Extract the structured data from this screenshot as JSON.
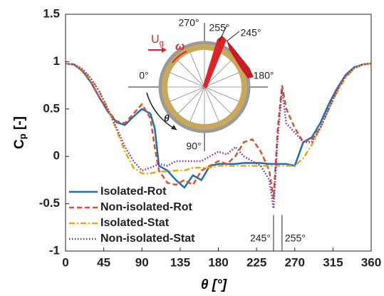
{
  "chart_data": {
    "type": "line",
    "xlabel": "θ [°]",
    "ylabel": {
      "main": "C",
      "sub": "p",
      "unit": " [-]"
    },
    "x": [
      0,
      10,
      20,
      30,
      40,
      50,
      60,
      70,
      80,
      90,
      100,
      105,
      110,
      120,
      130,
      140,
      150,
      160,
      170,
      180,
      190,
      200,
      210,
      220,
      230,
      240,
      245,
      250,
      255,
      260,
      270,
      280,
      290,
      300,
      310,
      320,
      330,
      340,
      350,
      360
    ],
    "series": [
      {
        "name": "Isolated-Rot",
        "color": "#1f6fb4",
        "dash": "solid",
        "values": [
          0.98,
          0.97,
          0.9,
          0.78,
          0.62,
          0.47,
          0.36,
          0.33,
          0.42,
          0.5,
          0.45,
          0.3,
          -0.1,
          -0.15,
          -0.25,
          -0.33,
          -0.2,
          -0.25,
          -0.1,
          -0.08,
          -0.08,
          -0.08,
          -0.07,
          -0.07,
          -0.07,
          -0.08,
          -0.08,
          -0.08,
          -0.08,
          -0.08,
          -0.1,
          0.15,
          0.2,
          0.35,
          0.55,
          0.72,
          0.86,
          0.94,
          0.97,
          0.98
        ]
      },
      {
        "name": "Non-isolated-Rot",
        "color": "#d9532a",
        "dash": "dashed",
        "values": [
          0.98,
          0.97,
          0.9,
          0.78,
          0.62,
          0.48,
          0.37,
          0.35,
          0.45,
          0.55,
          0.4,
          0.1,
          -0.15,
          -0.28,
          -0.3,
          -0.25,
          -0.3,
          -0.15,
          -0.1,
          -0.05,
          -0.08,
          0.0,
          0.15,
          0.18,
          0.05,
          -0.15,
          -0.45,
          0.3,
          0.75,
          0.5,
          0.3,
          0.15,
          0.18,
          0.3,
          0.5,
          0.7,
          0.85,
          0.93,
          0.97,
          0.98
        ]
      },
      {
        "name": "Isolated-Stat",
        "color": "#e8a81c",
        "dash": "dashdot",
        "values": [
          0.98,
          0.97,
          0.92,
          0.82,
          0.68,
          0.5,
          0.28,
          0.05,
          -0.12,
          -0.18,
          -0.18,
          -0.17,
          -0.16,
          -0.16,
          -0.15,
          -0.15,
          -0.12,
          -0.12,
          -0.12,
          -0.1,
          -0.1,
          -0.1,
          -0.1,
          -0.1,
          -0.1,
          -0.1,
          -0.1,
          -0.1,
          -0.1,
          -0.1,
          -0.1,
          -0.02,
          0.12,
          0.3,
          0.5,
          0.68,
          0.83,
          0.93,
          0.97,
          0.98
        ]
      },
      {
        "name": "Non-isolated-Stat",
        "color": "#7b2e9e",
        "dash": "dotted",
        "values": [
          0.98,
          0.97,
          0.92,
          0.82,
          0.68,
          0.5,
          0.3,
          0.1,
          -0.05,
          -0.15,
          -0.12,
          -0.1,
          -0.08,
          -0.1,
          -0.05,
          -0.05,
          -0.05,
          -0.05,
          0.0,
          0.05,
          0.02,
          0.1,
          0.0,
          -0.05,
          -0.1,
          -0.25,
          -0.55,
          0.2,
          0.7,
          0.35,
          0.25,
          0.15,
          0.15,
          0.3,
          0.5,
          0.7,
          0.85,
          0.93,
          0.97,
          0.98
        ]
      }
    ],
    "xlim": [
      0,
      360
    ],
    "xticks": [
      0,
      45,
      90,
      135,
      180,
      225,
      270,
      315,
      360
    ],
    "ylim": [
      -1,
      1.5
    ],
    "yticks": [
      -1,
      -0.5,
      0,
      0.5,
      1,
      1.5
    ],
    "legend": "lower left",
    "annotations": [
      {
        "value": 245,
        "label": "245°"
      },
      {
        "value": 255,
        "label": "255°"
      }
    ],
    "inset": {
      "top": "270°",
      "angle1": "255°",
      "angle2": "245°",
      "left": "0°",
      "right": "180°",
      "bottom": "90°",
      "flow": "U",
      "flow_sub": "g",
      "omega": "ω",
      "theta": "θ"
    }
  }
}
